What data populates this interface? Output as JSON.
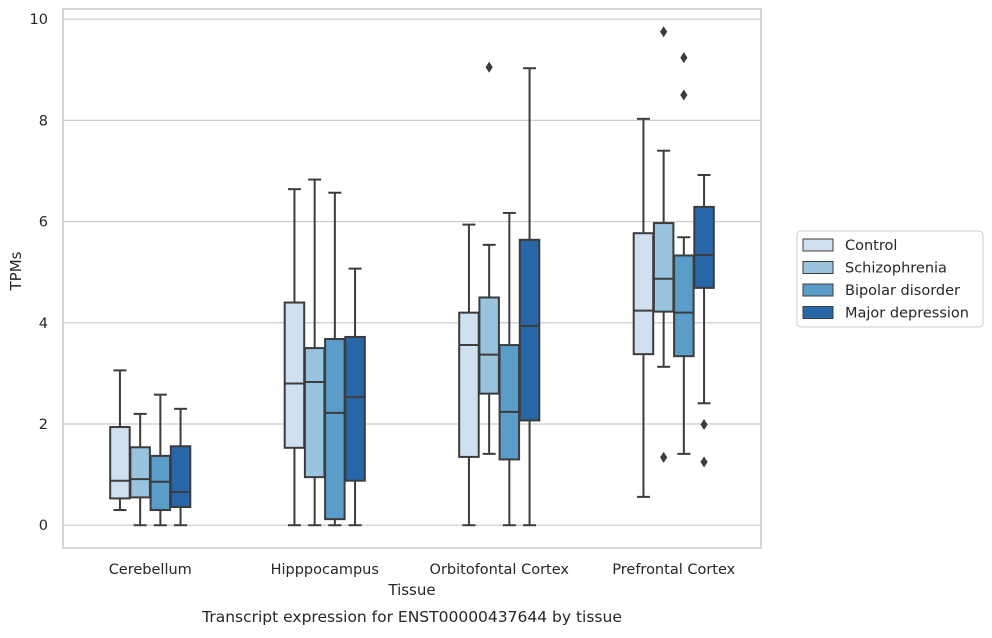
{
  "chart_data": {
    "type": "boxplot",
    "title": "",
    "xlabel": "Tissue",
    "ylabel": "TPMs",
    "caption": "Transcript expression for ENST00000437644 by tissue",
    "ylim": [
      -0.45,
      10.2
    ],
    "yticks": [
      0,
      2,
      4,
      6,
      8,
      10
    ],
    "grid": "horizontal",
    "legend_position": "right",
    "categories": [
      "Cerebellum",
      "Hipppocampus",
      "Orbitofontal Cortex",
      "Prefrontal Cortex"
    ],
    "series": [
      {
        "name": "Control",
        "color": "#d0e0f0",
        "boxes": [
          {
            "whislo": 0.3,
            "q1": 0.53,
            "med": 0.88,
            "q3": 1.94,
            "whishi": 3.06,
            "fliers": []
          },
          {
            "whislo": 0.0,
            "q1": 1.53,
            "med": 2.8,
            "q3": 4.4,
            "whishi": 6.64,
            "fliers": []
          },
          {
            "whislo": 0.0,
            "q1": 1.35,
            "med": 3.56,
            "q3": 4.2,
            "whishi": 5.94,
            "fliers": []
          },
          {
            "whislo": 0.56,
            "q1": 3.38,
            "med": 4.24,
            "q3": 5.77,
            "whishi": 8.03,
            "fliers": []
          }
        ]
      },
      {
        "name": "Schizophrenia",
        "color": "#9ac3de",
        "boxes": [
          {
            "whislo": 0.0,
            "q1": 0.55,
            "med": 0.91,
            "q3": 1.54,
            "whishi": 2.2,
            "fliers": []
          },
          {
            "whislo": 0.0,
            "q1": 0.95,
            "med": 2.83,
            "q3": 3.5,
            "whishi": 6.83,
            "fliers": []
          },
          {
            "whislo": 1.41,
            "q1": 2.6,
            "med": 3.37,
            "q3": 4.5,
            "whishi": 5.54,
            "fliers": [
              9.05
            ]
          },
          {
            "whislo": 3.13,
            "q1": 4.22,
            "med": 4.87,
            "q3": 5.97,
            "whishi": 7.4,
            "fliers": [
              9.75,
              1.34
            ]
          }
        ]
      },
      {
        "name": "Bipolar disorder",
        "color": "#5a9dc9",
        "boxes": [
          {
            "whislo": 0.0,
            "q1": 0.3,
            "med": 0.86,
            "q3": 1.37,
            "whishi": 2.58,
            "fliers": []
          },
          {
            "whislo": 0.0,
            "q1": 0.12,
            "med": 2.22,
            "q3": 3.68,
            "whishi": 6.57,
            "fliers": []
          },
          {
            "whislo": 0.0,
            "q1": 1.3,
            "med": 2.24,
            "q3": 3.56,
            "whishi": 6.17,
            "fliers": []
          },
          {
            "whislo": 1.41,
            "q1": 3.34,
            "med": 4.2,
            "q3": 5.33,
            "whishi": 5.69,
            "fliers": [
              9.24,
              8.5
            ]
          }
        ]
      },
      {
        "name": "Major depression",
        "color": "#2767a8",
        "boxes": [
          {
            "whislo": 0.0,
            "q1": 0.36,
            "med": 0.66,
            "q3": 1.56,
            "whishi": 2.3,
            "fliers": []
          },
          {
            "whislo": 0.0,
            "q1": 0.88,
            "med": 2.53,
            "q3": 3.72,
            "whishi": 5.07,
            "fliers": []
          },
          {
            "whislo": 0.0,
            "q1": 2.07,
            "med": 3.94,
            "q3": 5.64,
            "whishi": 9.03,
            "fliers": []
          },
          {
            "whislo": 2.41,
            "q1": 4.69,
            "med": 5.34,
            "q3": 6.29,
            "whishi": 6.92,
            "fliers": [
              1.99,
              1.25
            ]
          }
        ]
      }
    ]
  }
}
